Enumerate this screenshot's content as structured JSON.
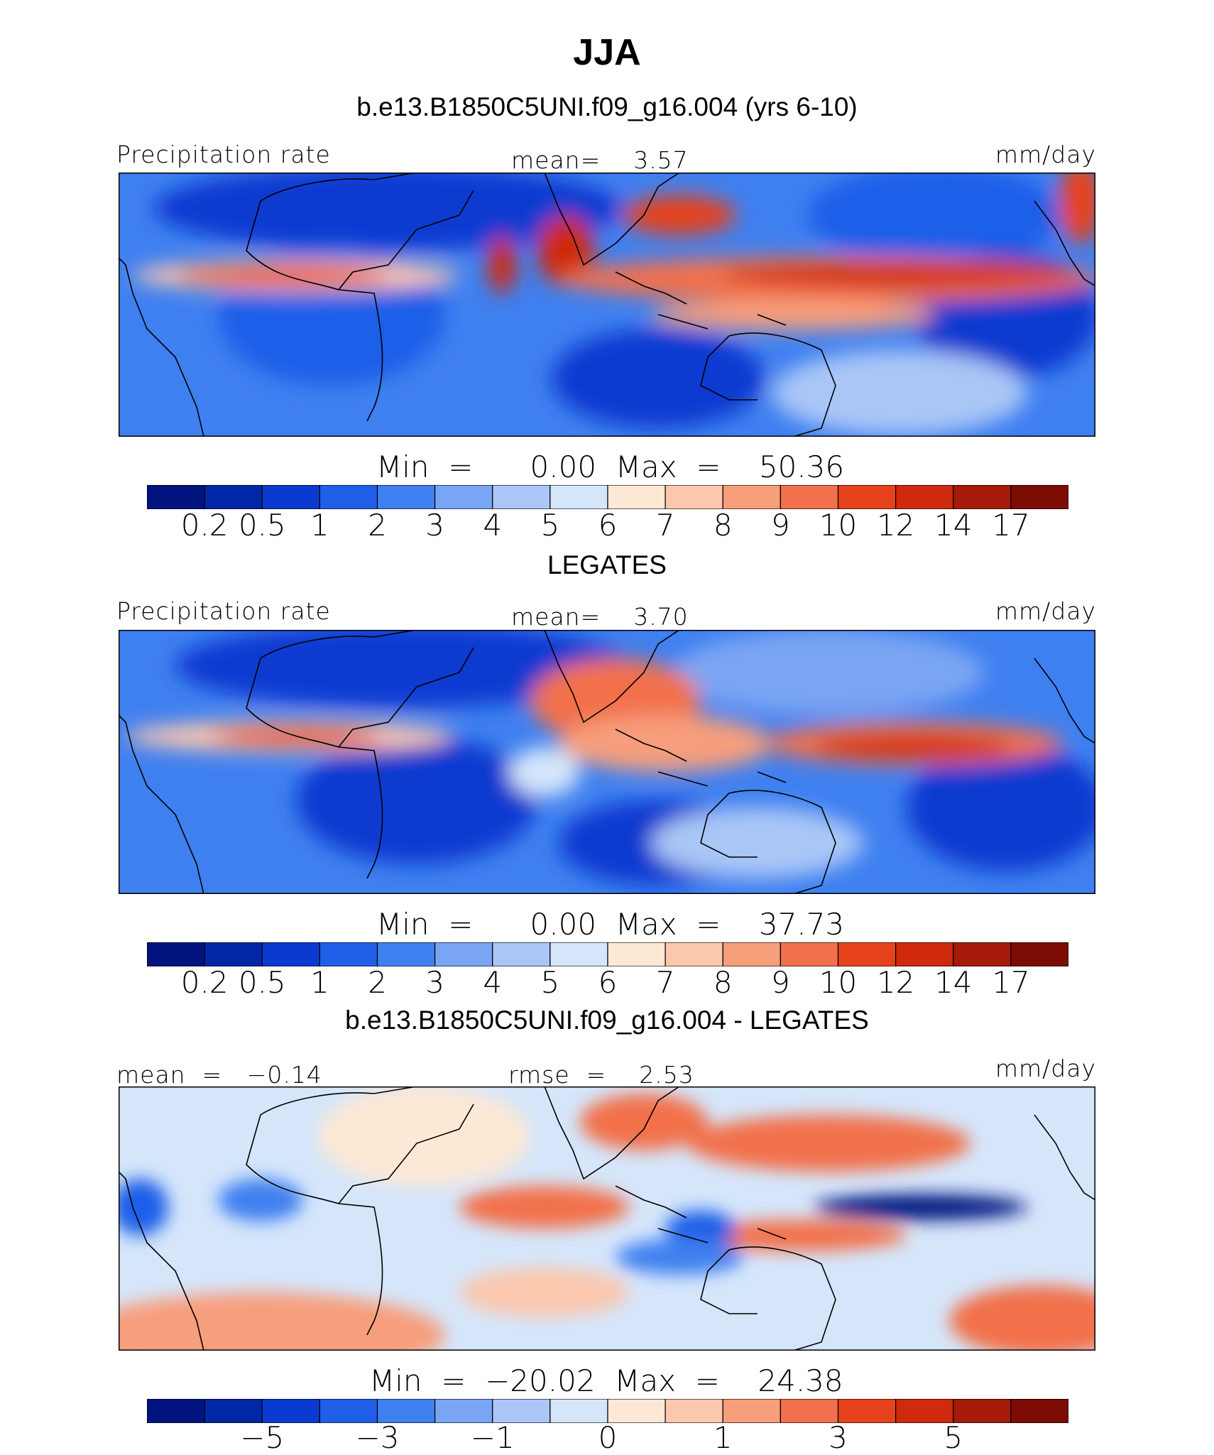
{
  "title": "JJA",
  "levels_abs": [
    "0.2",
    "0.5",
    "1",
    "2",
    "3",
    "4",
    "5",
    "6",
    "7",
    "8",
    "9",
    "10",
    "12",
    "14",
    "17"
  ],
  "levels_diff": [
    "−5",
    "−3",
    "−1",
    "0",
    "1",
    "3",
    "5"
  ],
  "colors_abs": [
    "#00137f",
    "#0027a5",
    "#0a3ad0",
    "#1f5fe8",
    "#3f80f0",
    "#7aa5f4",
    "#a9c6f7",
    "#d5e6fb",
    "#fde8d5",
    "#fbc7ad",
    "#f79e7b",
    "#f2714c",
    "#e6431c",
    "#cf2a0e",
    "#a51a08",
    "#7d0c04"
  ],
  "colors_diff": [
    "#00137f",
    "#0027a5",
    "#0a3ad0",
    "#1f5fe8",
    "#3f80f0",
    "#7aa5f4",
    "#a9c6f7",
    "#d5e6fb",
    "#fde8d5",
    "#fbc7ad",
    "#f79e7b",
    "#f2714c",
    "#e6431c",
    "#cf2a0e",
    "#a51a08",
    "#7d0c04"
  ],
  "panels": [
    {
      "heading": "b.e13.B1850C5UNI.f09_g16.004 (yrs 6-10)",
      "left_label": "Precipitation rate",
      "center_label": "mean=    3.57",
      "units": "mm/day",
      "minmax": "Min  =      0.00  Max  =    50.36"
    },
    {
      "heading": "LEGATES",
      "left_label": "Precipitation rate",
      "center_label": "mean=    3.70",
      "units": "mm/day",
      "minmax": "Min  =      0.00  Max  =    37.73"
    },
    {
      "heading": "b.e13.B1850C5UNI.f09_g16.004 - LEGATES",
      "left_label": "mean  =   −0.14",
      "center_label": "rmse  =    2.53",
      "units": "mm/day",
      "minmax": "Min  =  −20.02  Max  =    24.38"
    }
  ],
  "chart_data": [
    {
      "type": "heatmap",
      "title": "b.e13.B1850C5UNI.f09_g16.004 (yrs 6-10)",
      "variable": "Precipitation rate",
      "units": "mm/day",
      "mean": 3.57,
      "min": 0.0,
      "max": 50.36,
      "colorbar_levels": [
        0.2,
        0.5,
        1,
        2,
        3,
        4,
        5,
        6,
        7,
        8,
        9,
        10,
        12,
        14,
        17
      ]
    },
    {
      "type": "heatmap",
      "title": "LEGATES",
      "variable": "Precipitation rate",
      "units": "mm/day",
      "mean": 3.7,
      "min": 0.0,
      "max": 37.73,
      "colorbar_levels": [
        0.2,
        0.5,
        1,
        2,
        3,
        4,
        5,
        6,
        7,
        8,
        9,
        10,
        12,
        14,
        17
      ]
    },
    {
      "type": "heatmap",
      "title": "b.e13.B1850C5UNI.f09_g16.004 - LEGATES",
      "units": "mm/day",
      "mean": -0.14,
      "rmse": 2.53,
      "min": -20.02,
      "max": 24.38,
      "colorbar_ticks": [
        -5,
        -3,
        -1,
        0,
        1,
        3,
        5
      ]
    }
  ]
}
